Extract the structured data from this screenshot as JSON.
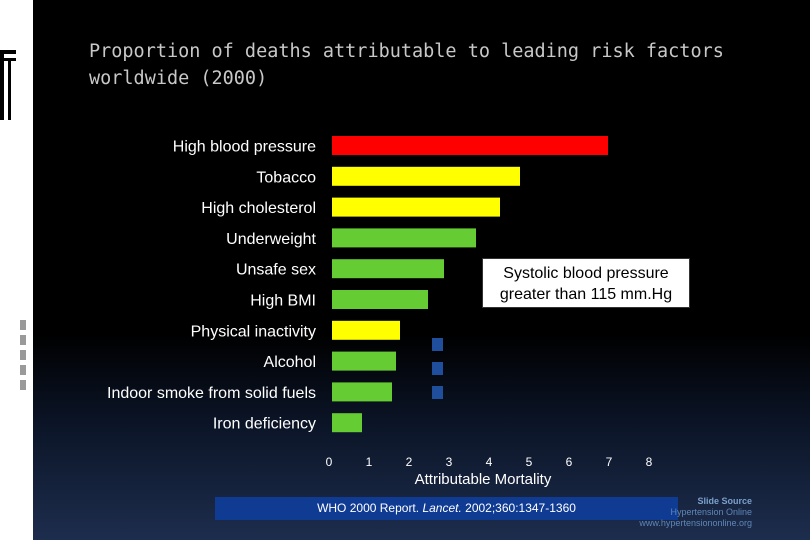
{
  "slide": {
    "title": "Proportion of deaths attributable to leading risk factors\nworldwide (2000)",
    "callout": "Systolic blood pressure\ngreater than 115 mm.Hg",
    "source_prefix": "WHO 2000 Report. ",
    "source_journal": "Lancet.",
    "source_suffix": " 2002;360:1347-1360",
    "credit_line1": "Slide Source",
    "credit_line2": "Hypertension Online",
    "credit_line3": "www.hypertensiononline.org"
  },
  "chart_data": {
    "type": "bar",
    "orientation": "horizontal",
    "title": "",
    "xlabel": "Attributable Mortality",
    "ylabel": "",
    "xlim": [
      0,
      8
    ],
    "xticks": [
      "0",
      "1",
      "2",
      "3",
      "4",
      "5",
      "6",
      "7",
      "8"
    ],
    "categories": [
      "High blood pressure",
      "Tobacco",
      "High cholesterol",
      "Underweight",
      "Unsafe sex",
      "High BMI",
      "Physical inactivity",
      "Alcohol",
      "Indoor smoke from solid fuels",
      "Iron deficiency"
    ],
    "values": [
      6.9,
      4.7,
      4.2,
      3.6,
      2.8,
      2.4,
      1.7,
      1.6,
      1.5,
      0.75
    ],
    "colors": [
      "#ff0000",
      "#ffff00",
      "#ffff00",
      "#66cc33",
      "#66cc33",
      "#66cc33",
      "#ffff00",
      "#66cc33",
      "#66cc33",
      "#66cc33"
    ]
  }
}
